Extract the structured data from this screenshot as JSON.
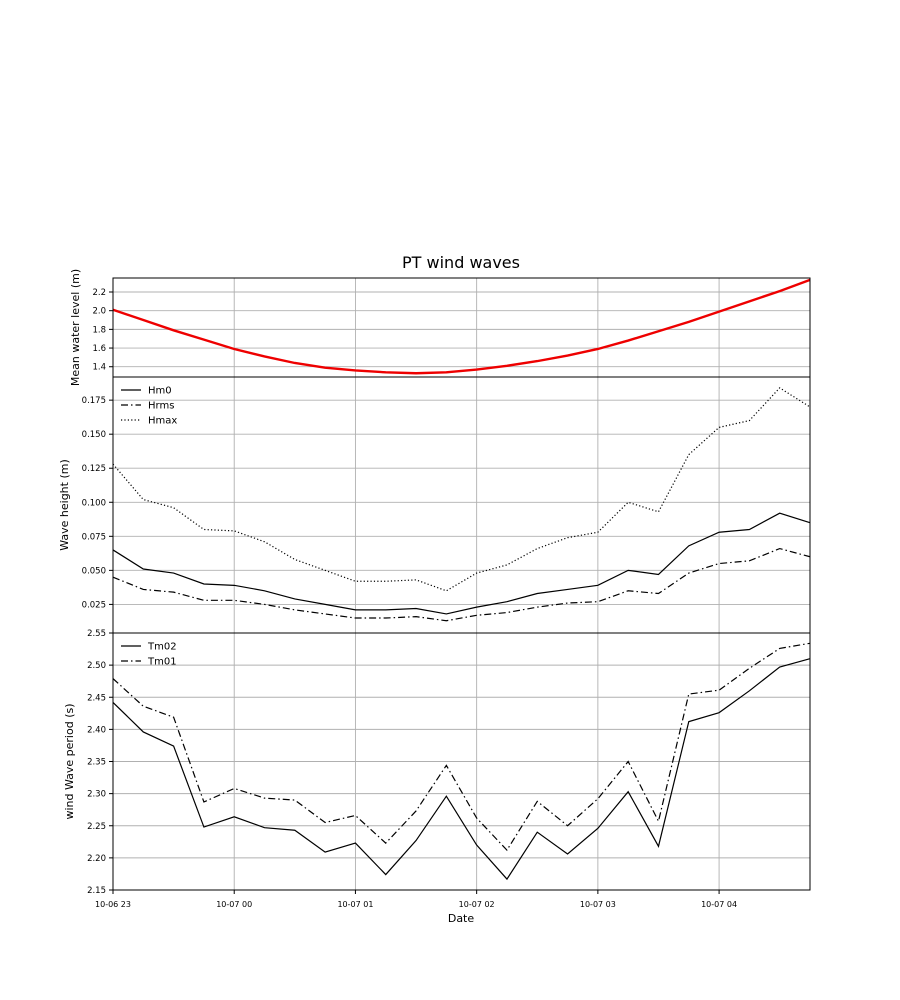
{
  "chart_data": {
    "type": "line",
    "title": "PT wind waves",
    "xlabel": "Date",
    "x": [
      "10-06 23:00",
      "10-06 23:15",
      "10-06 23:30",
      "10-06 23:45",
      "10-07 00:00",
      "10-07 00:15",
      "10-07 00:30",
      "10-07 00:45",
      "10-07 01:00",
      "10-07 01:15",
      "10-07 01:30",
      "10-07 01:45",
      "10-07 02:00",
      "10-07 02:15",
      "10-07 02:30",
      "10-07 02:45",
      "10-07 03:00",
      "10-07 03:15",
      "10-07 03:30",
      "10-07 03:45",
      "10-07 04:00",
      "10-07 04:15",
      "10-07 04:30",
      "10-07 04:45"
    ],
    "x_tick_labels": [
      "10-06 23",
      "10-07 00",
      "10-07 01",
      "10-07 02",
      "10-07 03",
      "10-07 04"
    ],
    "grid": true,
    "panels": [
      {
        "ylabel": "Mean water level (m)",
        "ylim": [
          1.29,
          2.35
        ],
        "yticks": [
          "1.4",
          "1.6",
          "1.8",
          "2.0",
          "2.2"
        ],
        "series": [
          {
            "name": "",
            "color": "#ee0000",
            "style": "solid",
            "values": [
              2.01,
              1.9,
              1.79,
              1.69,
              1.59,
              1.51,
              1.44,
              1.39,
              1.36,
              1.34,
              1.33,
              1.34,
              1.37,
              1.41,
              1.46,
              1.52,
              1.59,
              1.68,
              1.78,
              1.88,
              1.99,
              2.1,
              2.21,
              2.33
            ]
          }
        ]
      },
      {
        "ylabel": "Wave height (m)",
        "ylim": [
          0.004,
          0.192
        ],
        "yticks": [
          "0.025",
          "0.050",
          "0.075",
          "0.100",
          "0.125",
          "0.150",
          "0.175"
        ],
        "legend_position": "top-left",
        "series": [
          {
            "name": "Hm0",
            "color": "#000000",
            "style": "solid",
            "values": [
              0.065,
              0.051,
              0.048,
              0.04,
              0.039,
              0.035,
              0.029,
              0.025,
              0.021,
              0.021,
              0.022,
              0.018,
              0.023,
              0.027,
              0.033,
              0.036,
              0.039,
              0.05,
              0.047,
              0.068,
              0.078,
              0.08,
              0.092,
              0.085
            ]
          },
          {
            "name": "Hrms",
            "color": "#000000",
            "style": "dashdot",
            "values": [
              0.045,
              0.036,
              0.034,
              0.028,
              0.028,
              0.025,
              0.021,
              0.018,
              0.015,
              0.015,
              0.016,
              0.013,
              0.017,
              0.019,
              0.023,
              0.026,
              0.027,
              0.035,
              0.033,
              0.048,
              0.055,
              0.057,
              0.066,
              0.06
            ]
          },
          {
            "name": "Hmax",
            "color": "#000000",
            "style": "dotted",
            "values": [
              0.128,
              0.102,
              0.096,
              0.08,
              0.079,
              0.071,
              0.058,
              0.05,
              0.042,
              0.042,
              0.043,
              0.035,
              0.048,
              0.054,
              0.066,
              0.074,
              0.078,
              0.1,
              0.093,
              0.135,
              0.155,
              0.16,
              0.184,
              0.17
            ]
          }
        ]
      },
      {
        "ylabel": "wind Wave period (s)",
        "ylim": [
          2.15,
          2.55
        ],
        "yticks": [
          "2.15",
          "2.20",
          "2.25",
          "2.30",
          "2.35",
          "2.40",
          "2.45",
          "2.50",
          "2.55"
        ],
        "legend_position": "top-left",
        "series": [
          {
            "name": "Tm02",
            "color": "#000000",
            "style": "solid",
            "values": [
              2.442,
              2.396,
              2.374,
              2.248,
              2.264,
              2.247,
              2.243,
              2.209,
              2.223,
              2.174,
              2.227,
              2.296,
              2.22,
              2.167,
              2.24,
              2.206,
              2.246,
              2.303,
              2.218,
              2.412,
              2.426,
              2.46,
              2.497,
              2.51
            ]
          },
          {
            "name": "Tm01",
            "color": "#000000",
            "style": "dashdot",
            "values": [
              2.479,
              2.436,
              2.419,
              2.287,
              2.308,
              2.293,
              2.29,
              2.255,
              2.266,
              2.223,
              2.273,
              2.344,
              2.262,
              2.212,
              2.288,
              2.25,
              2.292,
              2.35,
              2.257,
              2.455,
              2.461,
              2.495,
              2.526,
              2.534
            ]
          }
        ]
      }
    ]
  }
}
